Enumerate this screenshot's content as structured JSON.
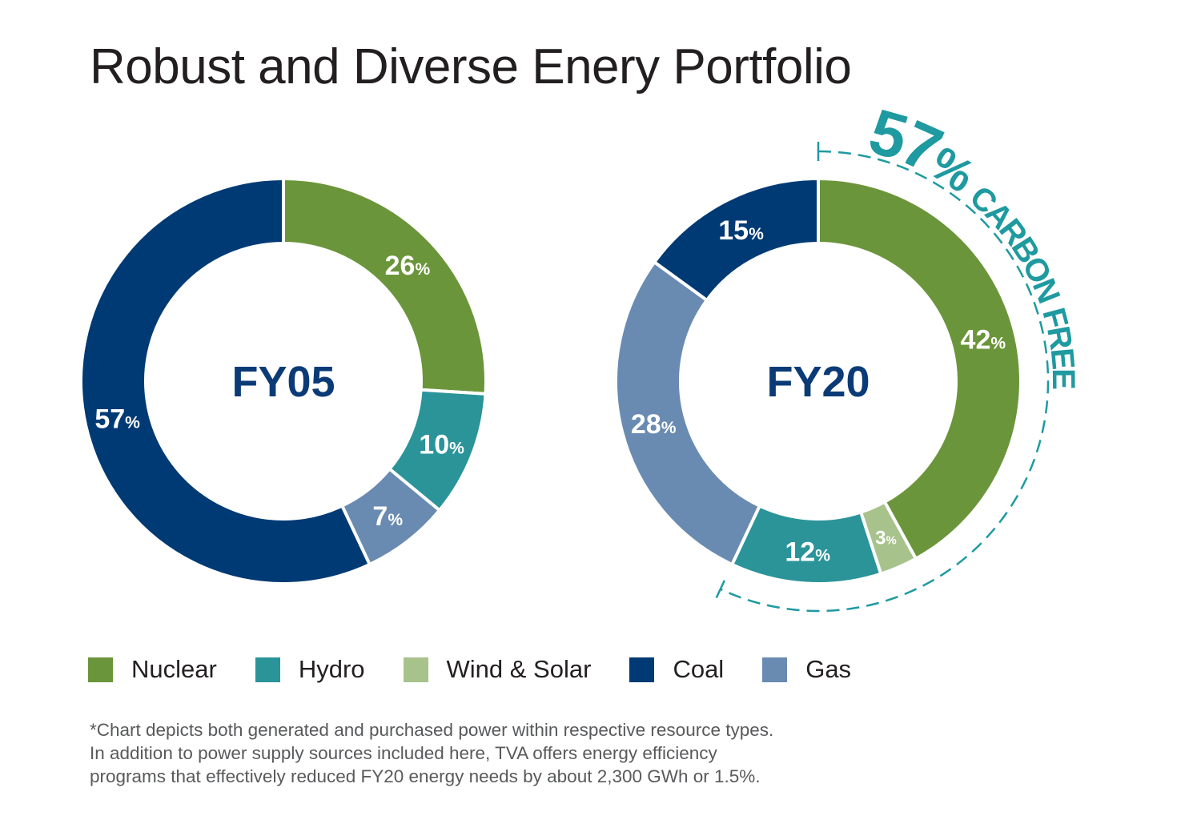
{
  "title": "Robust and Diverse Enery Portfolio",
  "colors": {
    "nuclear": "#6b953a",
    "hydro": "#2a9499",
    "wind_solar": "#a8c28c",
    "coal": "#003a74",
    "gas": "#6a8bb1",
    "accent": "#1e9aa0",
    "center_text": "#0b3b77"
  },
  "legend": [
    {
      "key": "nuclear",
      "label": "Nuclear"
    },
    {
      "key": "hydro",
      "label": "Hydro"
    },
    {
      "key": "wind_solar",
      "label": "Wind & Solar"
    },
    {
      "key": "coal",
      "label": "Coal"
    },
    {
      "key": "gas",
      "label": "Gas"
    }
  ],
  "chart_data": [
    {
      "type": "pie",
      "variant": "donut",
      "center_label": "FY05",
      "slices": [
        {
          "key": "nuclear",
          "value": 26,
          "label": "26%"
        },
        {
          "key": "hydro",
          "value": 10,
          "label": "10%"
        },
        {
          "key": "gas",
          "value": 7,
          "label": "7%"
        },
        {
          "key": "coal",
          "value": 57,
          "label": "57%"
        }
      ]
    },
    {
      "type": "pie",
      "variant": "donut",
      "center_label": "FY20",
      "slices": [
        {
          "key": "nuclear",
          "value": 42,
          "label": "42%"
        },
        {
          "key": "wind_solar",
          "value": 3,
          "label": "3%"
        },
        {
          "key": "hydro",
          "value": 12,
          "label": "12%"
        },
        {
          "key": "gas",
          "value": 28,
          "label": "28%"
        },
        {
          "key": "coal",
          "value": 15,
          "label": "15%"
        }
      ],
      "annotation": {
        "value": "57",
        "unit": "%",
        "text": "CARBON FREE"
      }
    }
  ],
  "footnote": [
    "*Chart depicts both generated and purchased power within respective resource types.",
    "In addition to power supply sources included here, TVA offers energy efficiency",
    "programs that effectively reduced FY20 energy needs by about 2,300 GWh or 1.5%."
  ]
}
